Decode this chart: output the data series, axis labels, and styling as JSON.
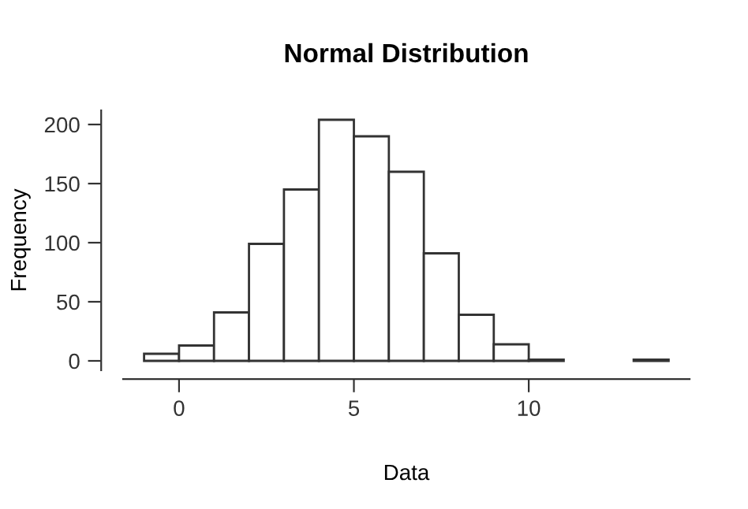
{
  "chart_data": {
    "type": "histogram",
    "title": "Normal Distribution",
    "xlabel": "Data",
    "ylabel": "Frequency",
    "bins": [
      -1,
      0,
      1,
      2,
      3,
      4,
      5,
      6,
      7,
      8,
      9,
      10,
      11,
      12,
      13,
      14
    ],
    "values": [
      6,
      13,
      41,
      99,
      145,
      204,
      190,
      160,
      91,
      39,
      14,
      1,
      0,
      0,
      1
    ],
    "color": "#ffffff",
    "xlim": [
      -1.6,
      14.6
    ],
    "ylim": [
      -8,
      212
    ],
    "xticks": [
      0,
      5,
      10
    ],
    "yticks": [
      0,
      50,
      100,
      150,
      200
    ],
    "grid": false,
    "legend": false
  }
}
